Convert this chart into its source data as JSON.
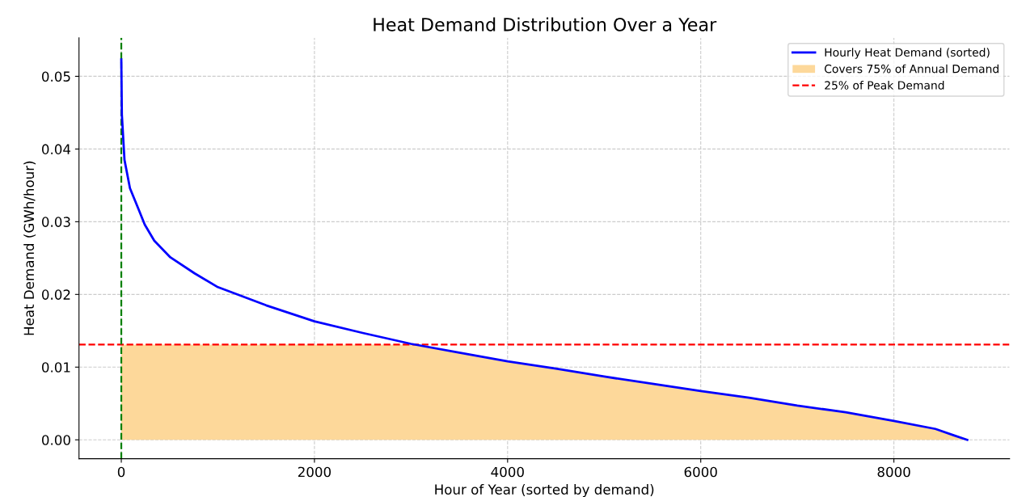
{
  "chart_data": {
    "type": "line",
    "title": "Heat Demand Distribution Over a Year",
    "xlabel": "Hour of Year (sorted by demand)",
    "ylabel": "Heat Demand (GWh/hour)",
    "series": [
      {
        "name": "Hourly Heat Demand (sorted)",
        "color": "#0000ff",
        "x": [
          0,
          6,
          33,
          90,
          173,
          243,
          341,
          508,
          759,
          1000,
          1500,
          2000,
          2500,
          3000,
          3500,
          4000,
          4500,
          5000,
          5500,
          6000,
          6500,
          7000,
          7500,
          8000,
          8430,
          8625,
          8760
        ],
        "values": [
          0.0523,
          0.0447,
          0.0385,
          0.0346,
          0.0319,
          0.0296,
          0.0274,
          0.0251,
          0.0229,
          0.021,
          0.0185,
          0.0163,
          0.0147,
          0.0132,
          0.012,
          0.0108,
          0.0098,
          0.0087,
          0.0077,
          0.0067,
          0.0058,
          0.0047,
          0.0038,
          0.0026,
          0.0015,
          0.0006,
          0.0
        ]
      },
      {
        "name": "Covers 75% of Annual Demand",
        "type": "area",
        "color": "#fdd89a",
        "x": [
          0,
          3050,
          3500,
          4000,
          4500,
          5000,
          5500,
          6000,
          6500,
          7000,
          7500,
          8000,
          8430,
          8625,
          8760
        ],
        "values": [
          0.0131,
          0.0131,
          0.012,
          0.0108,
          0.0098,
          0.0087,
          0.0077,
          0.0067,
          0.0058,
          0.0047,
          0.0038,
          0.0026,
          0.0015,
          0.0006,
          0.0
        ]
      }
    ],
    "ref_lines": [
      {
        "axis": "y",
        "value": 0.0131,
        "label": "25% of Peak Demand",
        "color": "#ff0000",
        "line_style": "dashed"
      },
      {
        "axis": "x",
        "value": 0,
        "color": "#008000",
        "line_style": "dashed"
      }
    ],
    "xlim": [
      -438,
      9198
    ],
    "ylim": [
      -0.0026,
      0.0553
    ],
    "xticks": [
      0,
      2000,
      4000,
      6000,
      8000
    ],
    "yticks": [
      {
        "value": 0,
        "label": "0.00"
      },
      {
        "value": 0.01,
        "label": "0.01"
      },
      {
        "value": 0.02,
        "label": "0.02"
      },
      {
        "value": 0.03,
        "label": "0.03"
      },
      {
        "value": 0.04,
        "label": "0.04"
      },
      {
        "value": 0.05,
        "label": "0.05"
      }
    ],
    "grid": true,
    "legend": "top right",
    "marker": "none",
    "line_style": "solid"
  }
}
